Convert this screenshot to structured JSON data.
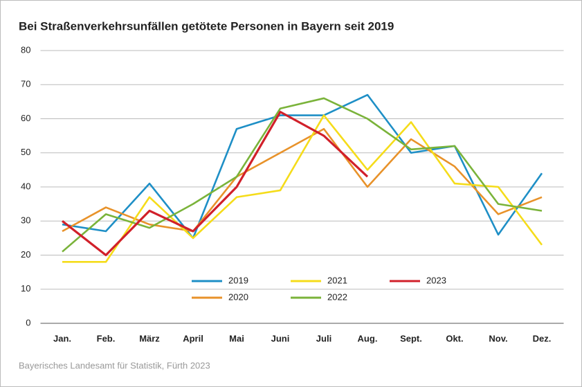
{
  "chart_data": {
    "type": "line",
    "title": "Bei Straßenverkehrsunfällen getötete Personen in Bayern seit 2019",
    "source": "Bayerisches Landesamt für Statistik, Fürth 2023",
    "categories": [
      "Jan.",
      "Feb.",
      "März",
      "April",
      "Mai",
      "Juni",
      "Juli",
      "Aug.",
      "Sept.",
      "Okt.",
      "Nov.",
      "Dez."
    ],
    "series": [
      {
        "name": "2019",
        "color": "#1e8fc6",
        "values": [
          29,
          27,
          41,
          25,
          57,
          61,
          61,
          67,
          50,
          52,
          26,
          44
        ]
      },
      {
        "name": "2020",
        "color": "#e8922a",
        "values": [
          27,
          34,
          29,
          27,
          43,
          50,
          57,
          40,
          54,
          46,
          32,
          37
        ]
      },
      {
        "name": "2021",
        "color": "#f5dc1a",
        "values": [
          18,
          18,
          37,
          25,
          37,
          39,
          61,
          45,
          59,
          41,
          40,
          23
        ]
      },
      {
        "name": "2022",
        "color": "#7ab33a",
        "values": [
          21,
          32,
          28,
          35,
          43,
          63,
          66,
          60,
          51,
          52,
          35,
          33
        ]
      },
      {
        "name": "2023",
        "color": "#d1202a",
        "values": [
          30,
          20,
          33,
          27,
          40,
          62,
          55,
          43,
          null,
          null,
          null,
          null
        ]
      }
    ],
    "ylim": [
      0,
      80
    ],
    "yticks": [
      0,
      10,
      20,
      30,
      40,
      50,
      60,
      70,
      80
    ],
    "grid": true
  }
}
